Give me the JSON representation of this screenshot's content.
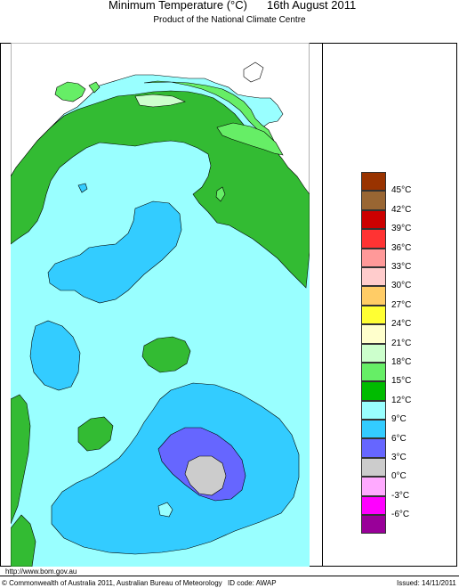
{
  "header": {
    "title": "Minimum Temperature (°C)",
    "date": "16th August 2011",
    "subtitle": "Product of the National Climate Centre"
  },
  "legend": {
    "items": [
      {
        "label": "45°C",
        "color": "#993300"
      },
      {
        "label": "42°C",
        "color": "#996633"
      },
      {
        "label": "39°C",
        "color": "#cc0000"
      },
      {
        "label": "36°C",
        "color": "#ff3333"
      },
      {
        "label": "33°C",
        "color": "#ff9999"
      },
      {
        "label": "30°C",
        "color": "#ffcccc"
      },
      {
        "label": "27°C",
        "color": "#ffcc66"
      },
      {
        "label": "24°C",
        "color": "#ffff33"
      },
      {
        "label": "21°C",
        "color": "#ffffcc"
      },
      {
        "label": "18°C",
        "color": "#ccffcc"
      },
      {
        "label": "15°C",
        "color": "#66ee66"
      },
      {
        "label": "12°C",
        "color": "#00bb00"
      },
      {
        "label": "9°C",
        "color": "#99ffff"
      },
      {
        "label": "6°C",
        "color": "#33ccff"
      },
      {
        "label": "3°C",
        "color": "#6666ff"
      },
      {
        "label": "0°C",
        "color": "#cccccc"
      },
      {
        "label": "-3°C",
        "color": "#ffaaff"
      },
      {
        "label": "-6°C",
        "color": "#ff00ff"
      },
      {
        "label": "",
        "color": "#990099"
      }
    ]
  },
  "colors": {
    "map_base": "#99ffff",
    "zone_12_15": "#33bb33",
    "zone_15_18": "#66ee66",
    "zone_18_21": "#ccffcc",
    "zone_6_9": "#33ccff",
    "zone_3_6": "#6666ff",
    "zone_0_3": "#cccccc"
  },
  "footer": {
    "url": "http://www.bom.gov.au",
    "copyright": "© Commonwealth of Australia 2011, Australian Bureau of Meteorology",
    "id_code": "ID code: AWAP",
    "issued": "Issued: 14/11/2011"
  }
}
